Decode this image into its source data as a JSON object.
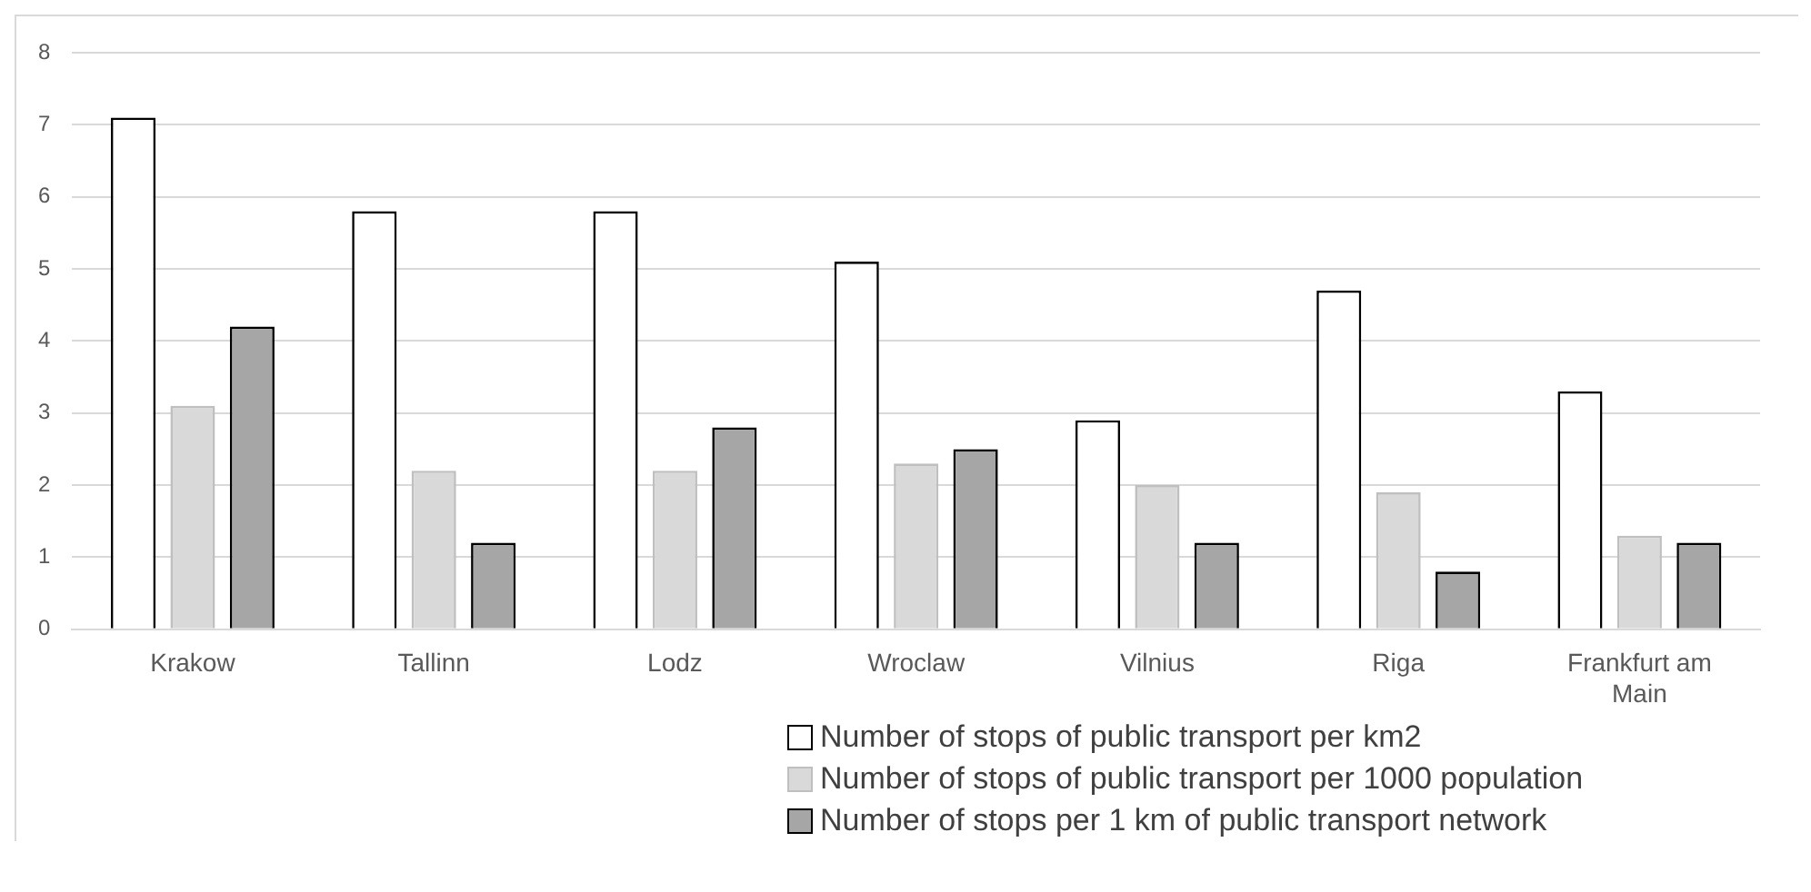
{
  "chart_data": {
    "type": "bar",
    "categories": [
      "Krakow",
      "Tallinn",
      "Lodz",
      "Wroclaw",
      "Vilnius",
      "Riga",
      "Frankfurt am Main"
    ],
    "series": [
      {
        "name": "Number of stops of public transport per km2",
        "color": "#ffffff",
        "values": [
          7.1,
          5.8,
          5.8,
          5.1,
          2.9,
          4.7,
          3.3
        ]
      },
      {
        "name": "Number of stops of public transport per 1000 population",
        "color": "#d9d9d9",
        "values": [
          3.1,
          2.2,
          2.2,
          2.3,
          2.0,
          1.9,
          1.3
        ]
      },
      {
        "name": "Number of stops per 1 km of public transport network",
        "color": "#a6a6a6",
        "values": [
          4.2,
          1.2,
          2.8,
          2.5,
          1.2,
          0.8,
          1.2
        ]
      }
    ],
    "ylim": [
      0,
      8
    ],
    "yticks": [
      0,
      1,
      2,
      3,
      4,
      5,
      6,
      7,
      8
    ],
    "grid": "y",
    "legend": "bottom"
  }
}
